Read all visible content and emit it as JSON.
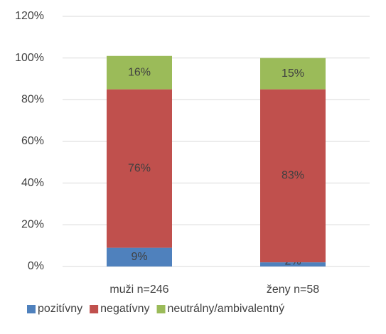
{
  "chart_data": {
    "type": "stacked_bar",
    "categories": [
      "muži n=246",
      "ženy n=58"
    ],
    "series": [
      {
        "name": "pozitívny",
        "color": "#4f81bd",
        "values": [
          9,
          2
        ],
        "value_labels": [
          "9%",
          "2%"
        ]
      },
      {
        "name": "negatívny",
        "color": "#c0504d",
        "values": [
          76,
          83
        ],
        "value_labels": [
          "76%",
          "83%"
        ]
      },
      {
        "name": "neutrálny/ambivalentný",
        "color": "#9bbb59",
        "values": [
          16,
          15
        ],
        "value_labels": [
          "16%",
          "15%"
        ]
      }
    ],
    "ylim": [
      0,
      120
    ],
    "yticks": [
      {
        "value": 0,
        "label": "0%"
      },
      {
        "value": 20,
        "label": "20%"
      },
      {
        "value": 40,
        "label": "40%"
      },
      {
        "value": 60,
        "label": "60%"
      },
      {
        "value": 80,
        "label": "80%"
      },
      {
        "value": 100,
        "label": "100%"
      },
      {
        "value": 120,
        "label": "120%"
      }
    ],
    "grid": true,
    "legend": "bottom"
  }
}
